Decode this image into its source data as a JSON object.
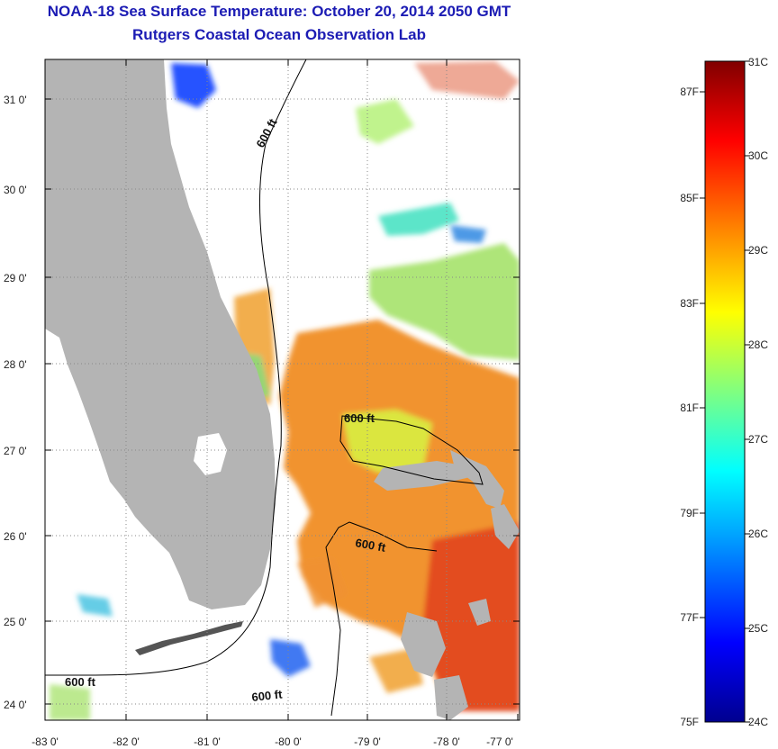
{
  "title": {
    "line1": "NOAA-18 Sea Surface Temperature:  October 20, 2014 2050 GMT",
    "line2": "Rutgers Coastal Ocean Observation Lab"
  },
  "map": {
    "lat_ticks": [
      "31 0'",
      "30 0'",
      "29 0'",
      "28 0'",
      "27 0'",
      "26 0'",
      "25 0'",
      "24 0'"
    ],
    "lon_ticks": [
      "-83 0'",
      "-82 0'",
      "-81 0'",
      "-80 0'",
      "-79 0'",
      "-78 0'",
      "-77 0'"
    ],
    "contour_labels": [
      "600 ft",
      "600 ft",
      "600 ft",
      "600 ft",
      "600 ft"
    ]
  },
  "colorbar": {
    "celsius_labels": [
      "31C",
      "30C",
      "29C",
      "28C",
      "27C",
      "26C",
      "25C",
      "24C"
    ],
    "fahrenheit_labels": [
      "87F",
      "85F",
      "83F",
      "81F",
      "79F",
      "77F",
      "75F"
    ],
    "range_c": [
      24,
      31
    ],
    "colors": [
      "#00008f",
      "#0000ff",
      "#00a0ff",
      "#00ffff",
      "#80ff80",
      "#ffff00",
      "#ff8000",
      "#ff0000",
      "#800000"
    ]
  },
  "colors": {
    "land": "#b4b4b4",
    "title": "#1c1cb4",
    "grid": "#888888"
  }
}
